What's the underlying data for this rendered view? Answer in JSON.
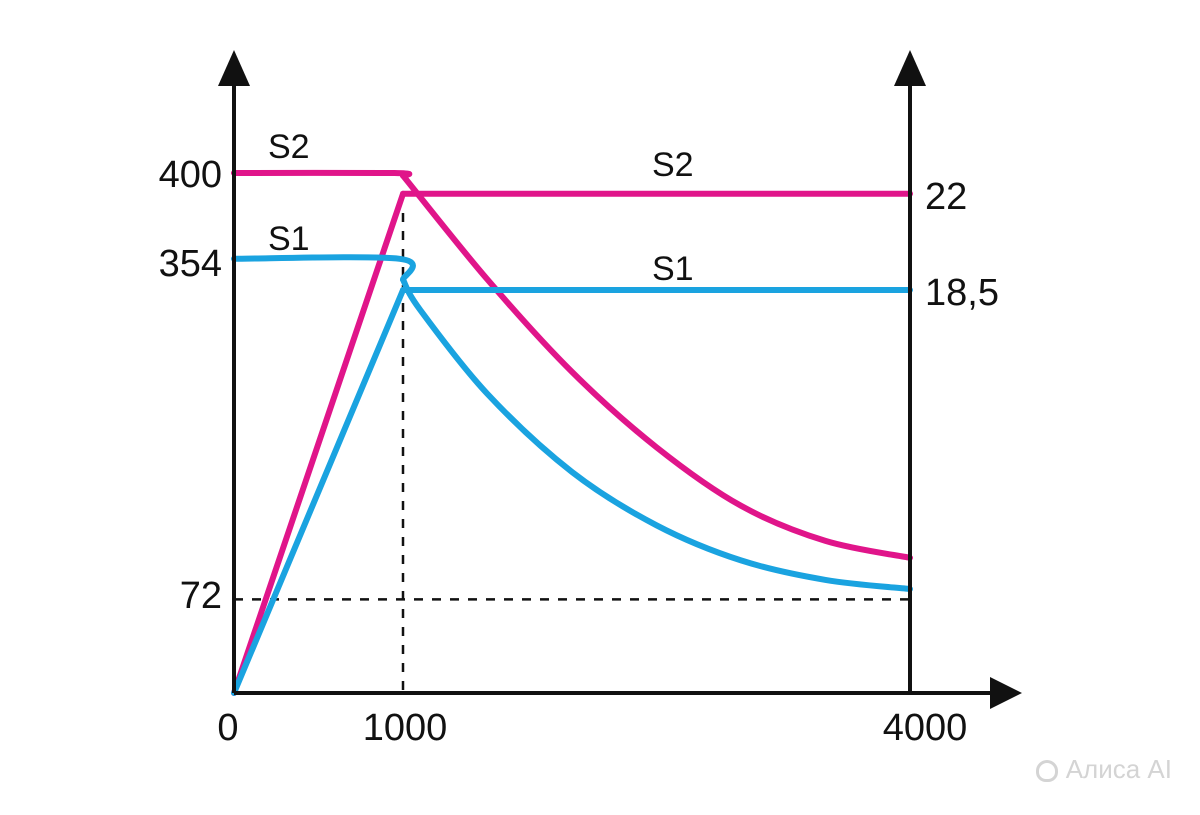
{
  "chart_data": {
    "type": "line",
    "x_ticks": [
      "0",
      "1000",
      "4000"
    ],
    "left_y_ticks": [
      "400",
      "354",
      "72"
    ],
    "right_y_ticks": [
      "22",
      "18,5"
    ],
    "xlim": [
      0,
      4000
    ],
    "ylim": [
      0,
      400
    ],
    "grid": false,
    "reference_lines": [
      {
        "axis": "x",
        "value": 1000,
        "style": "dashed"
      },
      {
        "axis": "y",
        "value": 72,
        "style": "dashed"
      }
    ],
    "series": [
      {
        "name": "S2",
        "color": "#e0158a",
        "segments": [
          {
            "kind": "rising",
            "x": [
              0,
              1000
            ],
            "y": [
              0,
              384
            ]
          },
          {
            "kind": "upper-flat",
            "x": [
              0,
              950,
              1000
            ],
            "y": [
              400,
              400,
              398
            ]
          },
          {
            "kind": "right-flat",
            "x": [
              1000,
              4000
            ],
            "y": [
              384,
              384
            ]
          },
          {
            "kind": "decay",
            "x": [
              1000,
              1500,
              2000,
              2500,
              3000,
              3500,
              4000
            ],
            "y": [
              398,
              318,
              247,
              189,
              144,
              117,
              104
            ]
          }
        ]
      },
      {
        "name": "S1",
        "color": "#1aa3e0",
        "segments": [
          {
            "kind": "rising",
            "x": [
              0,
              1000
            ],
            "y": [
              0,
              310
            ]
          },
          {
            "kind": "upper-flat",
            "x": [
              0,
              980,
              1000
            ],
            "y": [
              334,
              334,
              318
            ]
          },
          {
            "kind": "right-flat",
            "x": [
              1000,
              4000
            ],
            "y": [
              310,
              310
            ]
          },
          {
            "kind": "decay",
            "x": [
              1000,
              1100,
              1500,
              2000,
              2500,
              3000,
              3500,
              4000
            ],
            "y": [
              318,
              295,
              230,
              170,
              129,
              102,
              87,
              80
            ]
          }
        ]
      }
    ],
    "series_labels": [
      {
        "text": "S2",
        "series": "S2",
        "at_x": 0
      },
      {
        "text": "S2",
        "series": "S2",
        "at_x": 2300
      },
      {
        "text": "S1",
        "series": "S1",
        "at_x": 0
      },
      {
        "text": "S1",
        "series": "S1",
        "at_x": 2300
      }
    ]
  },
  "watermark": {
    "text": "Алиса AI"
  }
}
